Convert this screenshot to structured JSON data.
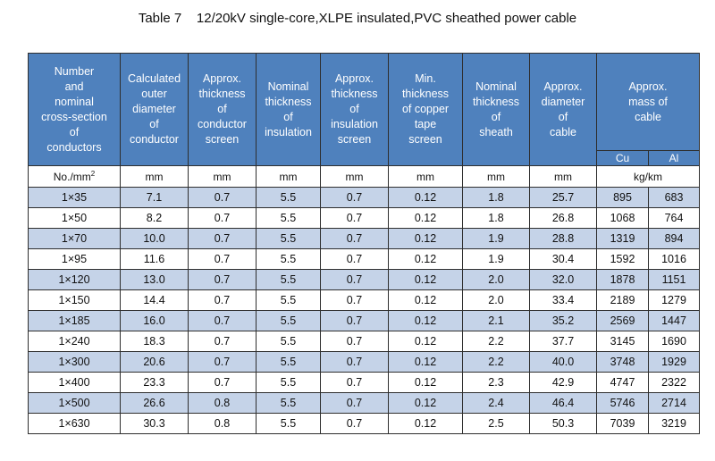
{
  "title": "Table 7    12/20kV single-core,XLPE insulated,PVC sheathed power cable",
  "headers": {
    "col1": [
      "Number",
      "and",
      "nominal",
      "cross-section",
      "of",
      "conductors"
    ],
    "col2": [
      "Calculated",
      "outer",
      "diameter",
      "of",
      "conductor"
    ],
    "col3": [
      "Approx.",
      "thickness",
      "of",
      "conductor",
      "screen"
    ],
    "col4": [
      "Nominal",
      "thickness",
      "of",
      "insulation"
    ],
    "col5": [
      "Approx.",
      "thickness",
      "of",
      "insulation",
      "screen"
    ],
    "col6": [
      "Min.",
      "thickness",
      "of copper",
      "tape",
      "screen"
    ],
    "col7": [
      "Nominal",
      "thickness",
      "of",
      "sheath"
    ],
    "col8": [
      "Approx.",
      "diameter",
      "of",
      "cable"
    ],
    "col9": [
      "Approx.",
      "mass of",
      "cable"
    ],
    "cu": "Cu",
    "al": "Al"
  },
  "units": {
    "col1": "No./mm",
    "col1_sup": "2",
    "col2": "mm",
    "col3": "mm",
    "col4": "mm",
    "col5": "mm",
    "col6": "mm",
    "col7": "mm",
    "col8": "mm",
    "col9": "kg/km"
  },
  "rows": [
    [
      "1×35",
      "7.1",
      "0.7",
      "5.5",
      "0.7",
      "0.12",
      "1.8",
      "25.7",
      "895",
      "683"
    ],
    [
      "1×50",
      "8.2",
      "0.7",
      "5.5",
      "0.7",
      "0.12",
      "1.8",
      "26.8",
      "1068",
      "764"
    ],
    [
      "1×70",
      "10.0",
      "0.7",
      "5.5",
      "0.7",
      "0.12",
      "1.9",
      "28.8",
      "1319",
      "894"
    ],
    [
      "1×95",
      "11.6",
      "0.7",
      "5.5",
      "0.7",
      "0.12",
      "1.9",
      "30.4",
      "1592",
      "1016"
    ],
    [
      "1×120",
      "13.0",
      "0.7",
      "5.5",
      "0.7",
      "0.12",
      "2.0",
      "32.0",
      "1878",
      "1151"
    ],
    [
      "1×150",
      "14.4",
      "0.7",
      "5.5",
      "0.7",
      "0.12",
      "2.0",
      "33.4",
      "2189",
      "1279"
    ],
    [
      "1×185",
      "16.0",
      "0.7",
      "5.5",
      "0.7",
      "0.12",
      "2.1",
      "35.2",
      "2569",
      "1447"
    ],
    [
      "1×240",
      "18.3",
      "0.7",
      "5.5",
      "0.7",
      "0.12",
      "2.2",
      "37.7",
      "3145",
      "1690"
    ],
    [
      "1×300",
      "20.6",
      "0.7",
      "5.5",
      "0.7",
      "0.12",
      "2.2",
      "40.0",
      "3748",
      "1929"
    ],
    [
      "1×400",
      "23.3",
      "0.7",
      "5.5",
      "0.7",
      "0.12",
      "2.3",
      "42.9",
      "4747",
      "2322"
    ],
    [
      "1×500",
      "26.6",
      "0.8",
      "5.5",
      "0.7",
      "0.12",
      "2.4",
      "46.4",
      "5746",
      "2714"
    ],
    [
      "1×630",
      "30.3",
      "0.8",
      "5.5",
      "0.7",
      "0.12",
      "2.5",
      "50.3",
      "7039",
      "3219"
    ]
  ]
}
